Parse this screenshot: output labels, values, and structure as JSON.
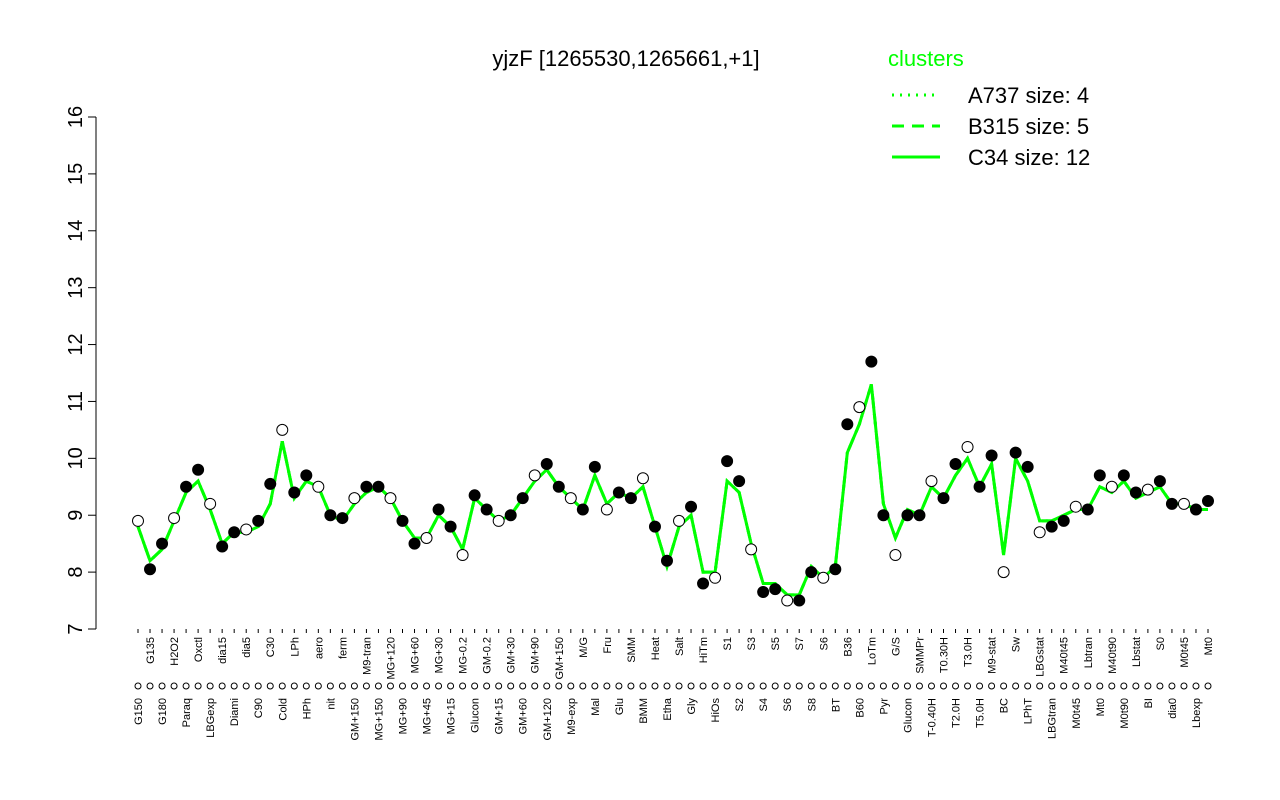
{
  "chart_data": {
    "type": "line",
    "title": "yjzF [1265530,1265661,+1]",
    "legend_title": "clusters",
    "legend": "top-right",
    "ylim": [
      7,
      16
    ],
    "yticks": [
      7,
      8,
      9,
      10,
      11,
      12,
      13,
      14,
      15,
      16
    ],
    "categories": [
      "G150",
      "G135",
      "G180",
      "H2O2",
      "Paraq",
      "Oxctl",
      "LBGexp",
      "dia15",
      "Diami",
      "dia5",
      "C90",
      "C30",
      "Cold",
      "LPh",
      "HPh",
      "aero",
      "nit",
      "ferm",
      "GM+150",
      "M9-tran",
      "MG+150",
      "MG+120",
      "MG+90",
      "MG+60",
      "MG+45",
      "MG+30",
      "MG+15",
      "MG-0.2",
      "Glucon",
      "GM-0.2",
      "GM+15",
      "GM+30",
      "GM+60",
      "GM+90",
      "GM+120",
      "GM+150",
      "M9-exp",
      "M/G",
      "Mal",
      "Fru",
      "Glu",
      "SMM",
      "BMM",
      "Heat",
      "Etha",
      "Salt",
      "Gly",
      "HiTm",
      "HiOs",
      "S1",
      "S2",
      "S3",
      "S4",
      "S5",
      "S6",
      "S7",
      "S8",
      "S6",
      "BT",
      "B36",
      "B60",
      "LoTm",
      "Pyr",
      "G/S",
      "Glucon",
      "SMMPr",
      "T-0.40H",
      "T0.30H",
      "T2.0H",
      "T3.0H",
      "T5.0H",
      "M9-stat",
      "BC",
      "Sw",
      "LPhT",
      "LBGstat",
      "LBGtran",
      "M40t45",
      "M0t45",
      "Lbtran",
      "Mt0",
      "M40t90",
      "M0t90",
      "Lbstat",
      "BI",
      "S0",
      "dia0",
      "M0t45",
      "Lbexp",
      "Mt0"
    ],
    "values": [
      8.9,
      8.05,
      8.5,
      8.95,
      9.5,
      9.8,
      9.2,
      8.45,
      8.7,
      8.75,
      8.9,
      9.55,
      10.5,
      9.4,
      9.7,
      9.5,
      9.0,
      8.95,
      9.3,
      9.5,
      9.5,
      9.3,
      8.9,
      8.5,
      8.6,
      9.1,
      8.8,
      8.3,
      9.35,
      9.1,
      8.9,
      9.0,
      9.3,
      9.7,
      9.9,
      9.5,
      9.3,
      9.1,
      9.85,
      9.1,
      9.4,
      9.3,
      9.65,
      8.8,
      8.2,
      8.9,
      9.15,
      7.8,
      7.9,
      9.95,
      9.6,
      8.4,
      7.65,
      7.7,
      7.5,
      7.5,
      8.0,
      7.9,
      8.05,
      10.6,
      10.9,
      11.7,
      9.0,
      8.3,
      9.0,
      9.0,
      9.6,
      9.3,
      9.9,
      10.2,
      9.5,
      10.05,
      8.0,
      10.1,
      9.85,
      8.7,
      8.8,
      8.9,
      9.15,
      9.1,
      9.7,
      9.5,
      9.7,
      9.4,
      9.45,
      9.6,
      9.2,
      9.2,
      9.1,
      9.25
    ],
    "point_color": "#000000",
    "series": [
      {
        "name": "A737 size: 4",
        "color": "#00ff00",
        "dash": "dotted",
        "values": [
          8.8,
          8.2,
          8.4,
          8.9,
          9.4,
          9.6,
          9.1,
          8.5,
          8.7,
          8.7,
          8.8,
          9.2,
          10.3,
          9.3,
          9.6,
          9.5,
          9.0,
          8.9,
          9.2,
          9.4,
          9.5,
          9.3,
          8.9,
          8.6,
          8.6,
          9.0,
          8.8,
          8.4,
          9.3,
          9.1,
          8.9,
          9.0,
          9.3,
          9.6,
          9.8,
          9.5,
          9.3,
          9.1,
          9.7,
          9.2,
          9.4,
          9.3,
          9.5,
          8.8,
          8.1,
          8.8,
          9.0,
          8.0,
          8.0,
          9.6,
          9.4,
          8.5,
          7.8,
          7.8,
          7.6,
          7.6,
          8.1,
          7.9,
          8.1,
          10.1,
          10.6,
          11.3,
          9.2,
          8.6,
          9.1,
          9.0,
          9.5,
          9.3,
          9.7,
          10.0,
          9.5,
          9.9,
          8.3,
          10.0,
          9.6,
          8.9,
          8.9,
          9.0,
          9.1,
          9.1,
          9.5,
          9.4,
          9.6,
          9.3,
          9.4,
          9.5,
          9.2,
          9.2,
          9.1,
          9.1
        ]
      },
      {
        "name": "B315 size: 5",
        "color": "#00ff00",
        "dash": "dashed",
        "values": [
          8.8,
          8.2,
          8.4,
          8.9,
          9.4,
          9.6,
          9.1,
          8.5,
          8.7,
          8.7,
          8.8,
          9.2,
          10.3,
          9.3,
          9.6,
          9.5,
          9.0,
          8.9,
          9.2,
          9.4,
          9.5,
          9.3,
          8.9,
          8.6,
          8.6,
          9.0,
          8.8,
          8.4,
          9.3,
          9.1,
          8.9,
          9.0,
          9.3,
          9.6,
          9.8,
          9.5,
          9.3,
          9.1,
          9.7,
          9.2,
          9.4,
          9.3,
          9.5,
          8.8,
          8.1,
          8.8,
          9.0,
          8.0,
          8.0,
          9.6,
          9.4,
          8.5,
          7.8,
          7.8,
          7.6,
          7.6,
          8.1,
          7.9,
          8.1,
          10.1,
          10.6,
          11.3,
          9.2,
          8.6,
          9.1,
          9.0,
          9.5,
          9.3,
          9.7,
          10.0,
          9.5,
          9.9,
          8.3,
          10.0,
          9.6,
          8.9,
          8.9,
          9.0,
          9.1,
          9.1,
          9.5,
          9.4,
          9.6,
          9.3,
          9.4,
          9.5,
          9.2,
          9.2,
          9.1,
          9.1
        ]
      },
      {
        "name": "C34 size: 12",
        "color": "#00ff00",
        "dash": "solid",
        "values": [
          8.8,
          8.2,
          8.4,
          8.9,
          9.4,
          9.6,
          9.1,
          8.5,
          8.7,
          8.7,
          8.8,
          9.2,
          10.3,
          9.3,
          9.6,
          9.5,
          9.0,
          8.9,
          9.2,
          9.4,
          9.5,
          9.3,
          8.9,
          8.6,
          8.6,
          9.0,
          8.8,
          8.4,
          9.3,
          9.1,
          8.9,
          9.0,
          9.3,
          9.6,
          9.8,
          9.5,
          9.3,
          9.1,
          9.7,
          9.2,
          9.4,
          9.3,
          9.5,
          8.8,
          8.1,
          8.8,
          9.0,
          8.0,
          8.0,
          9.6,
          9.4,
          8.5,
          7.8,
          7.8,
          7.6,
          7.6,
          8.1,
          7.9,
          8.1,
          10.1,
          10.6,
          11.3,
          9.2,
          8.6,
          9.1,
          9.0,
          9.5,
          9.3,
          9.7,
          10.0,
          9.5,
          9.9,
          8.3,
          10.0,
          9.6,
          8.9,
          8.9,
          9.0,
          9.1,
          9.1,
          9.5,
          9.4,
          9.6,
          9.3,
          9.4,
          9.5,
          9.2,
          9.2,
          9.1,
          9.1
        ]
      }
    ]
  }
}
